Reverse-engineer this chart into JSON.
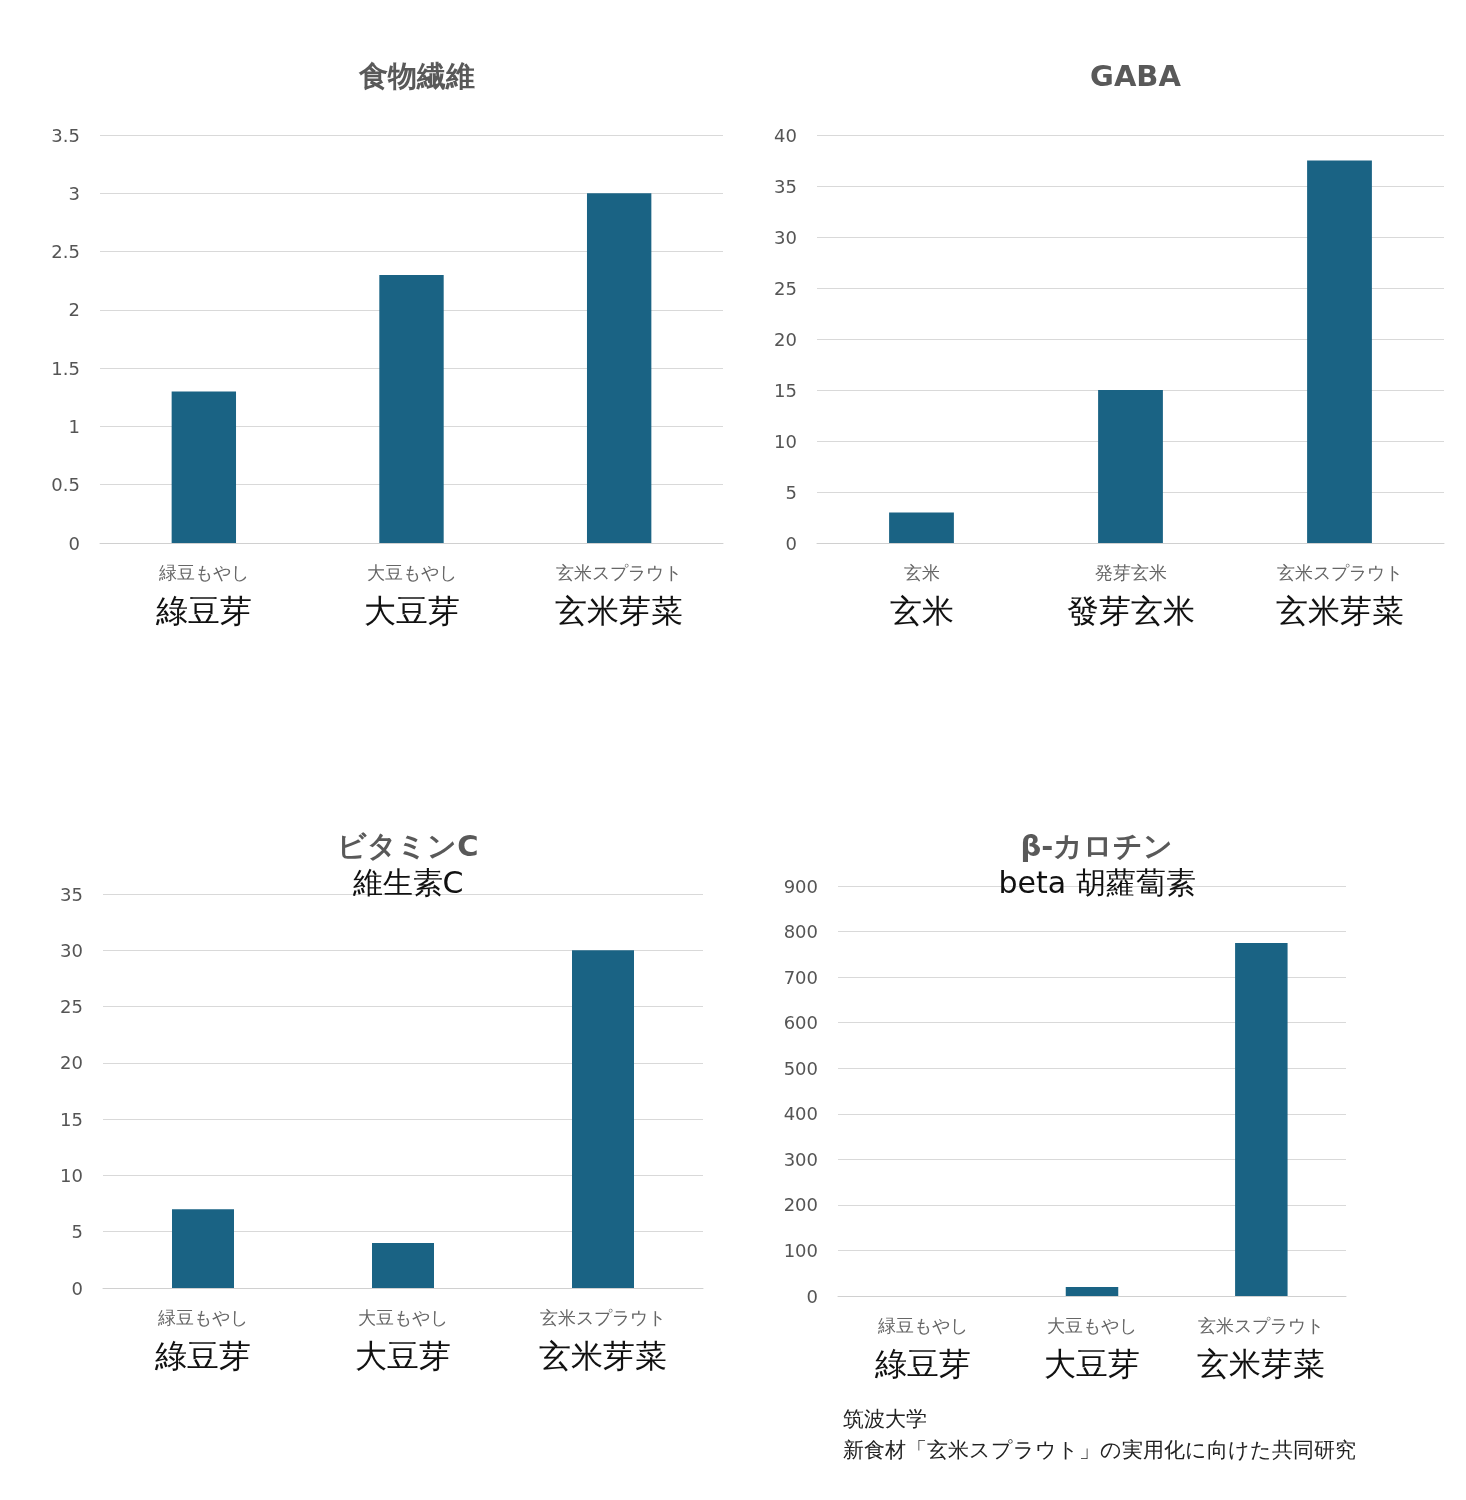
{
  "chart_data": [
    {
      "type": "bar",
      "title": "食物繊維",
      "categories": [
        "緑豆もやし",
        "大豆もやし",
        "玄米スプラウト"
      ],
      "values": [
        1.3,
        2.3,
        3
      ],
      "color": "#1a6384",
      "ylim": [
        0,
        3.5
      ],
      "yticks": [
        0,
        0.5,
        1,
        1.5,
        2,
        2.5,
        3,
        3.5
      ],
      "grid": "y",
      "annotations": [
        "綠豆芽",
        "大豆芽",
        "玄米芽菜"
      ]
    },
    {
      "type": "bar",
      "title": "GABA",
      "categories": [
        "玄米",
        "発芽玄米",
        "玄米スプラウト"
      ],
      "values": [
        3,
        15,
        37.5
      ],
      "color": "#1a6384",
      "ylim": [
        0,
        40
      ],
      "yticks": [
        0,
        5,
        10,
        15,
        20,
        25,
        30,
        35,
        40
      ],
      "grid": "y",
      "annotations": [
        "玄米",
        "發芽玄米",
        "玄米芽菜"
      ]
    },
    {
      "type": "bar",
      "title": "ビタミンC",
      "subtitle": "維生素C",
      "categories": [
        "緑豆もやし",
        "大豆もやし",
        "玄米スプラウト"
      ],
      "values": [
        7,
        4,
        30
      ],
      "color": "#1a6384",
      "ylim": [
        0,
        35
      ],
      "yticks": [
        0,
        5,
        10,
        15,
        20,
        25,
        30,
        35
      ],
      "grid": "y",
      "annotations": [
        "綠豆芽",
        "大豆芽",
        "玄米芽菜"
      ]
    },
    {
      "type": "bar",
      "title": "β-カロチン",
      "subtitle": "beta 胡蘿蔔素",
      "categories": [
        "緑豆もやし",
        "大豆もやし",
        "玄米スプラウト"
      ],
      "values": [
        0,
        20,
        775
      ],
      "color": "#1a6384",
      "ylim": [
        0,
        900
      ],
      "yticks": [
        0,
        100,
        200,
        300,
        400,
        500,
        600,
        700,
        800,
        900
      ],
      "grid": "y",
      "annotations": [
        "綠豆芽",
        "大豆芽",
        "玄米芽菜",
        "筑波大学",
        "新食材「玄米スプラウト」の実用化に向けた共同研究"
      ]
    }
  ]
}
